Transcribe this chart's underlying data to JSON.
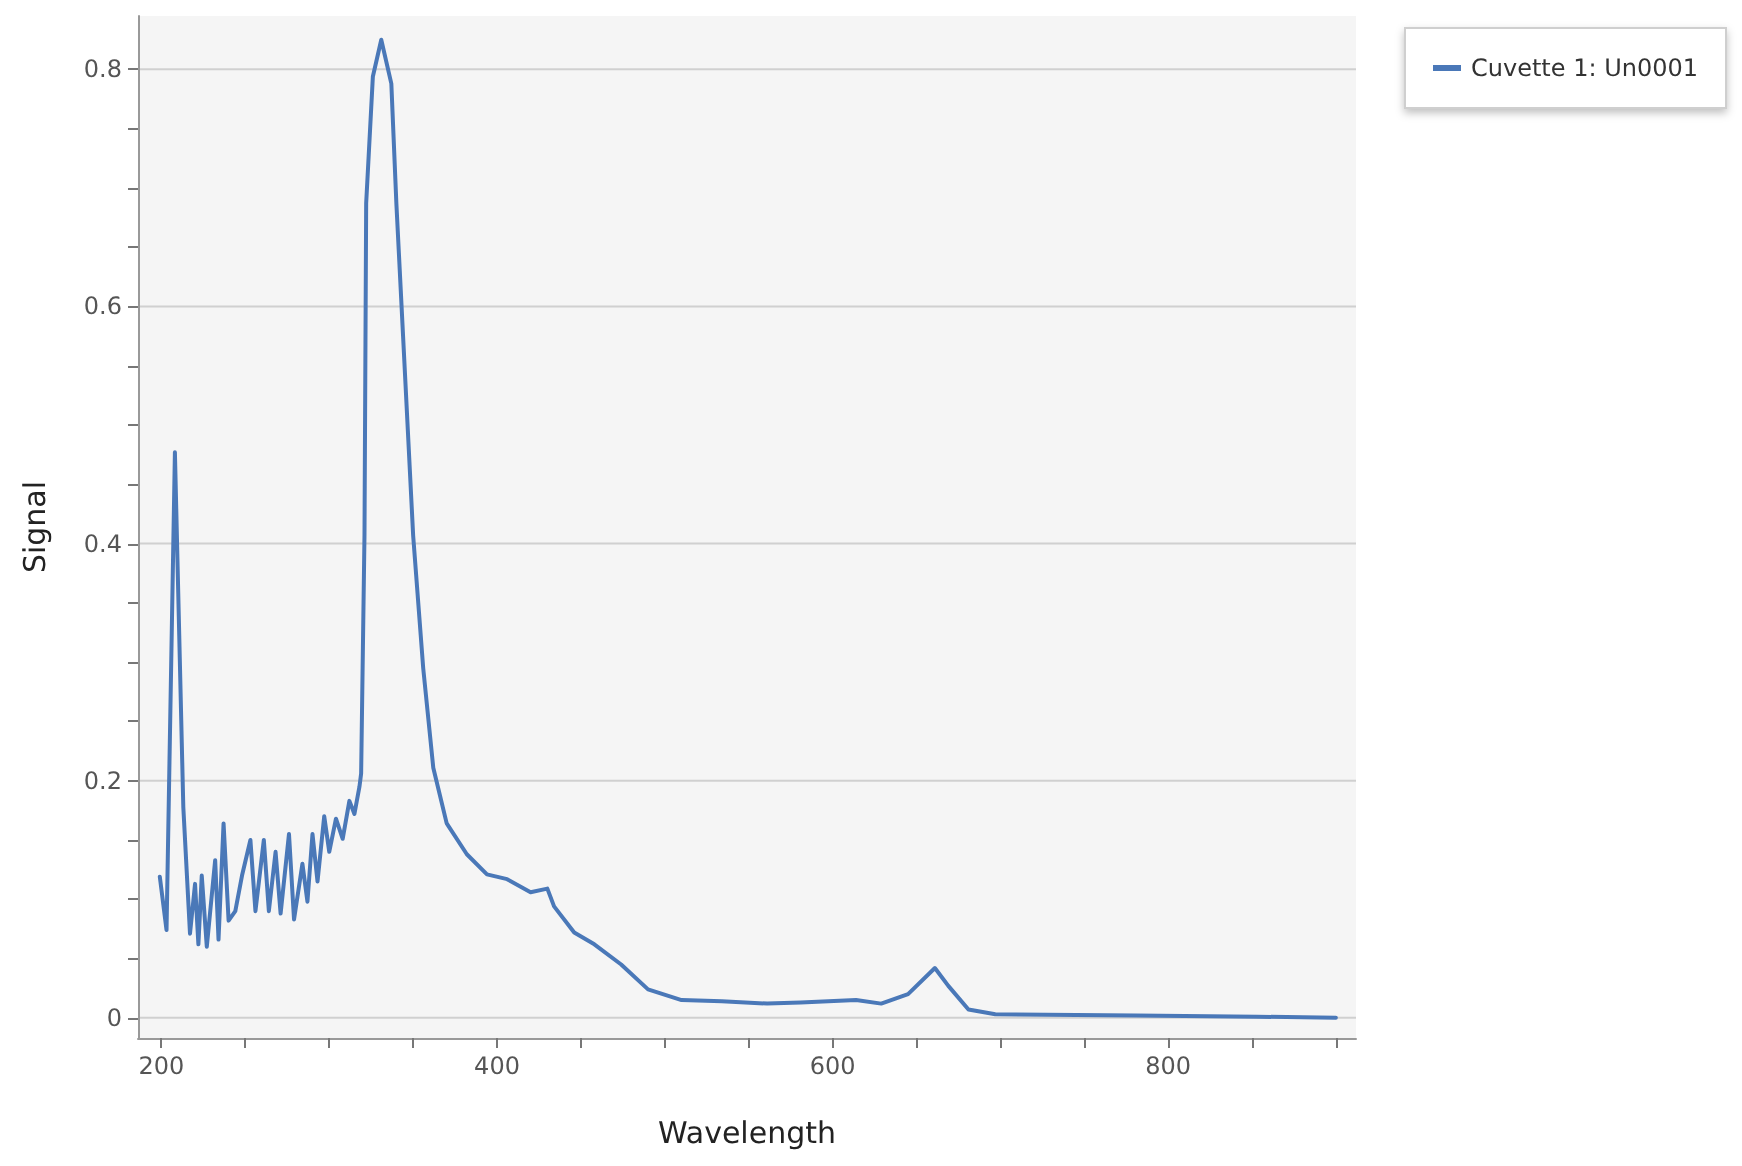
{
  "chart_data": {
    "type": "line",
    "xlabel": "Wavelength",
    "ylabel": "Signal",
    "xlim": [
      186,
      912
    ],
    "ylim": [
      -0.017,
      0.845
    ],
    "xticks": [
      200,
      {
        "value": 250,
        "label": null
      },
      {
        "value": 300,
        "label": null
      },
      {
        "value": 350,
        "label": null
      },
      400,
      {
        "value": 450,
        "label": null
      },
      {
        "value": 500,
        "label": null
      },
      {
        "value": 550,
        "label": null
      },
      600,
      {
        "value": 650,
        "label": null
      },
      {
        "value": 700,
        "label": null
      },
      {
        "value": 750,
        "label": null
      },
      800,
      {
        "value": 850,
        "label": null
      },
      {
        "value": 900,
        "label": null
      }
    ],
    "yticks": [
      0,
      {
        "value": 0.05,
        "label": null
      },
      {
        "value": 0.1,
        "label": null
      },
      {
        "value": 0.15,
        "label": null
      },
      0.2,
      {
        "value": 0.25,
        "label": null
      },
      {
        "value": 0.3,
        "label": null
      },
      {
        "value": 0.35,
        "label": null
      },
      0.4,
      {
        "value": 0.45,
        "label": null
      },
      {
        "value": 0.5,
        "label": null
      },
      {
        "value": 0.55,
        "label": null
      },
      0.6,
      {
        "value": 0.65,
        "label": null
      },
      {
        "value": 0.7,
        "label": null
      },
      {
        "value": 0.75,
        "label": null
      },
      0.8
    ],
    "grid": "y",
    "legend": "top right",
    "marker": "none",
    "line_style": "solid",
    "series": [
      {
        "name": "Cuvette 1: Un0001",
        "color": "#4a78b8",
        "x": [
          199,
          203,
          208,
          213,
          217,
          220,
          222,
          224,
          227,
          232,
          234,
          237,
          240,
          244,
          248,
          253,
          256,
          261,
          264,
          268,
          271,
          276,
          279,
          284,
          287,
          290,
          293,
          297,
          300,
          304,
          308,
          312,
          315,
          318,
          319,
          321,
          322,
          326,
          331,
          337,
          340,
          344,
          350,
          356,
          362,
          370,
          382,
          394,
          406,
          420,
          430,
          434,
          446,
          458,
          474,
          490,
          510,
          534,
          561,
          581,
          614,
          629,
          645,
          661,
          669,
          681,
          697,
          781,
          853,
          900
        ],
        "values": [
          0.119,
          0.074,
          0.477,
          0.178,
          0.071,
          0.113,
          0.062,
          0.12,
          0.06,
          0.133,
          0.066,
          0.164,
          0.082,
          0.09,
          0.12,
          0.15,
          0.09,
          0.15,
          0.09,
          0.14,
          0.088,
          0.155,
          0.083,
          0.13,
          0.098,
          0.155,
          0.115,
          0.17,
          0.14,
          0.168,
          0.151,
          0.183,
          0.172,
          0.195,
          0.206,
          0.407,
          0.687,
          0.794,
          0.825,
          0.788,
          0.687,
          0.575,
          0.407,
          0.295,
          0.211,
          0.164,
          0.138,
          0.121,
          0.117,
          0.106,
          0.109,
          0.094,
          0.072,
          0.062,
          0.045,
          0.024,
          0.015,
          0.014,
          0.012,
          0.013,
          0.015,
          0.012,
          0.02,
          0.042,
          0.027,
          0.007,
          0.003,
          0.002,
          0.001,
          0.0
        ]
      }
    ]
  }
}
